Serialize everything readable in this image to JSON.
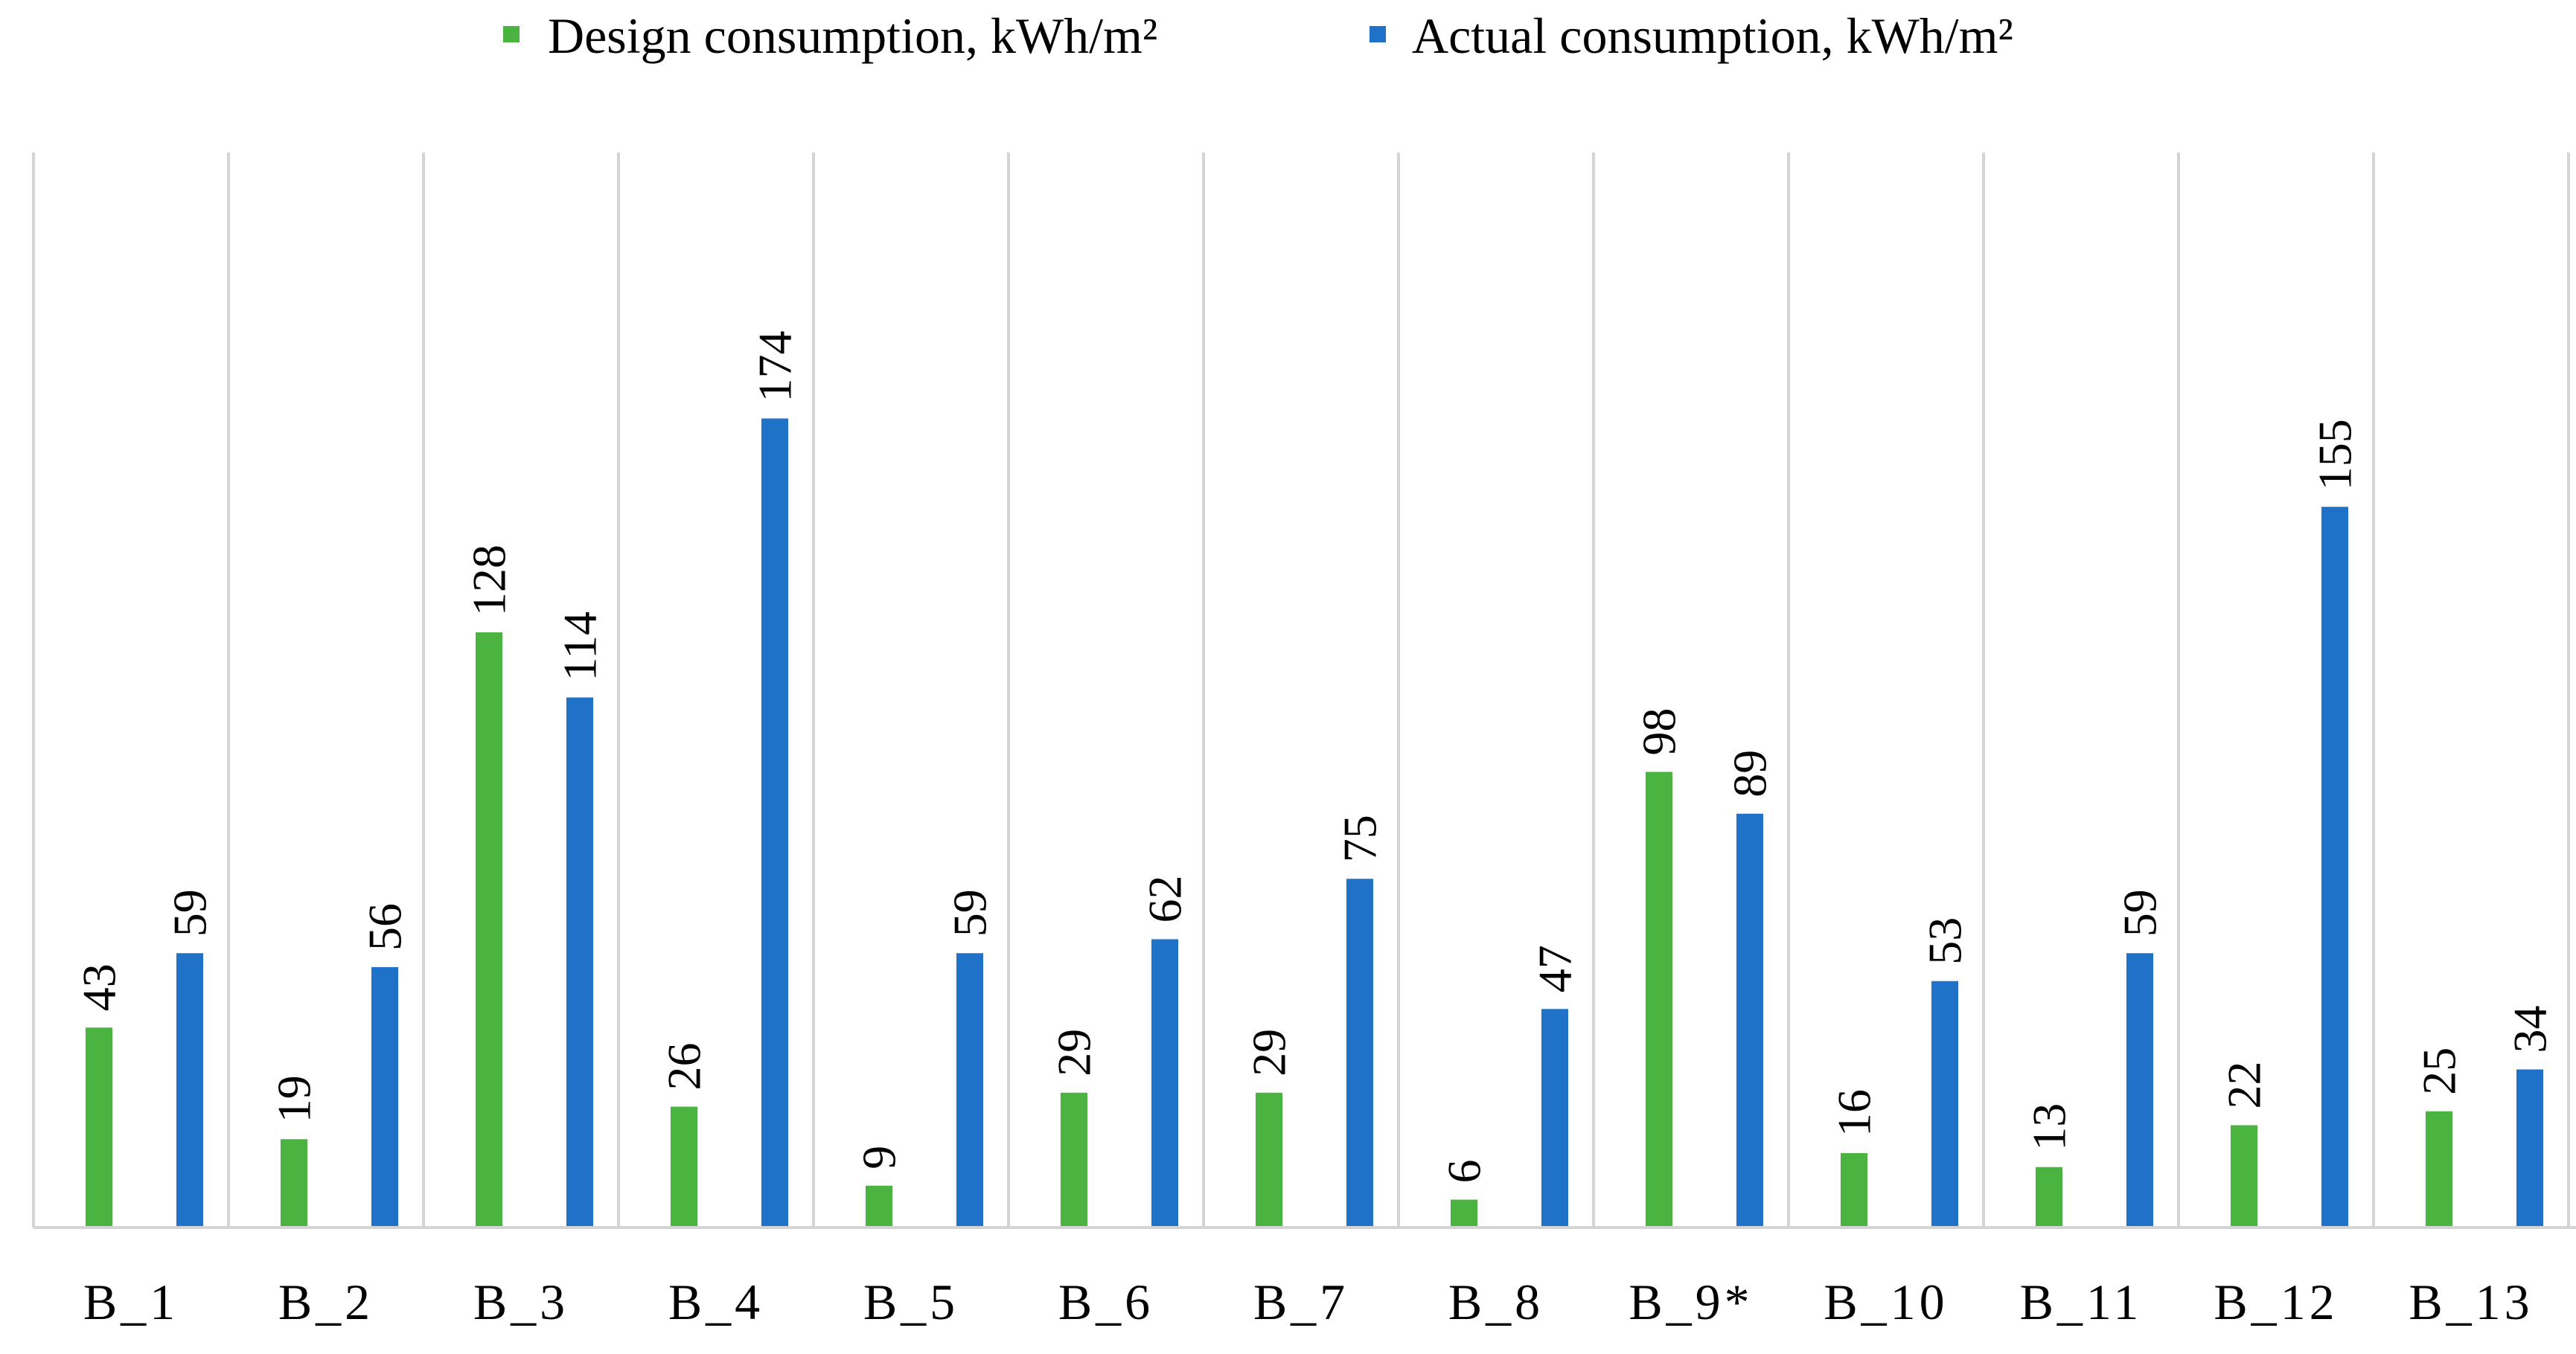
{
  "chart_data": {
    "type": "bar",
    "title": "",
    "xlabel": "",
    "ylabel": "",
    "categories": [
      "B_1",
      "B_2",
      "B_3",
      "B_4",
      "B_5",
      "B_6",
      "B_7",
      "B_8",
      "B_9*",
      "B_10",
      "B_11",
      "B_12",
      "B_13"
    ],
    "series": [
      {
        "name": "Design consumption, kWh/m²",
        "color": "#4bb33f",
        "values": [
          43,
          19,
          128,
          26,
          9,
          29,
          29,
          6,
          98,
          16,
          13,
          22,
          25
        ]
      },
      {
        "name": "Actual consumption, kWh/m²",
        "color": "#1f72c8",
        "values": [
          59,
          56,
          114,
          174,
          59,
          62,
          75,
          47,
          89,
          53,
          59,
          155,
          34
        ]
      }
    ],
    "ylim": [
      0,
      200
    ],
    "grid": "vertical category separators",
    "legend_position": "top-center",
    "data_labels": "rotated, above bars"
  }
}
